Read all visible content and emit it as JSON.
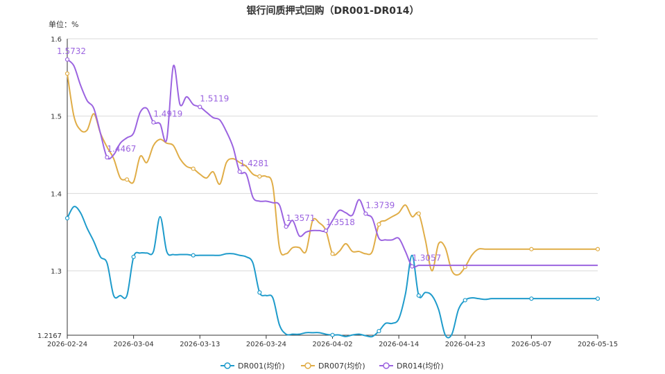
{
  "chart_data": {
    "type": "line",
    "title": "银行间质押式回购（DR001-DR014）",
    "unit_label": "单位：%",
    "ylim": [
      1.2167,
      1.6
    ],
    "y_ticks": [
      "1.2167",
      "1.3",
      "1.4",
      "1.5",
      "1.6"
    ],
    "x_ticks": [
      "2026-02-24",
      "2026-03-04",
      "2026-03-13",
      "2026-03-24",
      "2026-04-02",
      "2026-04-14",
      "2026-04-23",
      "2026-05-07",
      "2026-05-15"
    ],
    "grid": true,
    "legend_position": "bottom",
    "series": [
      {
        "name": "DR001(均价)",
        "color": "#1e9bcb",
        "x": [
          0,
          1,
          2,
          3,
          4,
          5,
          6,
          7,
          8,
          9,
          10,
          11,
          12,
          13,
          14,
          15,
          16,
          17,
          18,
          19,
          20,
          21,
          22,
          23,
          24,
          25,
          26,
          27,
          28,
          29,
          30,
          31,
          32,
          33,
          34,
          35,
          36,
          37,
          38,
          39,
          40,
          41,
          42,
          43,
          44,
          45,
          46,
          47,
          48,
          49,
          50,
          51,
          52,
          53,
          54,
          55,
          56,
          57,
          58,
          59,
          60,
          61,
          62,
          63,
          64,
          65,
          66,
          67,
          68,
          69,
          70,
          71,
          72,
          73,
          74,
          75,
          76,
          77,
          78,
          79,
          80
        ],
        "values": [
          1.368,
          1.383,
          1.375,
          1.355,
          1.338,
          1.318,
          1.31,
          1.268,
          1.268,
          1.268,
          1.318,
          1.323,
          1.323,
          1.325,
          1.37,
          1.325,
          1.321,
          1.321,
          1.321,
          1.32,
          1.32,
          1.32,
          1.32,
          1.32,
          1.322,
          1.322,
          1.32,
          1.318,
          1.31,
          1.272,
          1.268,
          1.265,
          1.23,
          1.218,
          1.218,
          1.218,
          1.22,
          1.22,
          1.22,
          1.218,
          1.217,
          1.217,
          1.215,
          1.217,
          1.218,
          1.216,
          1.215,
          1.222,
          1.232,
          1.232,
          1.238,
          1.27,
          1.32,
          1.268,
          1.272,
          1.268,
          1.25,
          1.217,
          1.218,
          1.25,
          1.262,
          1.265,
          1.264,
          1.263,
          1.264,
          1.264,
          1.264,
          1.264,
          1.264,
          1.264,
          1.264,
          1.264,
          1.264,
          1.264,
          1.264,
          1.264,
          1.264,
          1.264,
          1.264,
          1.264,
          1.264
        ],
        "markers": [
          0,
          10,
          19,
          29,
          40,
          47,
          53,
          60,
          70,
          80
        ],
        "labels": []
      },
      {
        "name": "DR007(均价)",
        "color": "#e0ad47",
        "x": [
          0,
          1,
          2,
          3,
          4,
          5,
          6,
          7,
          8,
          9,
          10,
          11,
          12,
          13,
          14,
          15,
          16,
          17,
          18,
          19,
          20,
          21,
          22,
          23,
          24,
          25,
          26,
          27,
          28,
          29,
          30,
          31,
          32,
          33,
          34,
          35,
          36,
          37,
          38,
          39,
          40,
          41,
          42,
          43,
          44,
          45,
          46,
          47,
          48,
          49,
          50,
          51,
          52,
          53,
          54,
          55,
          56,
          57,
          58,
          59,
          60,
          61,
          62,
          63,
          64,
          65,
          66,
          67,
          68,
          69,
          70,
          71,
          72,
          73,
          74,
          75,
          76,
          77,
          78,
          79,
          80
        ],
        "values": [
          1.555,
          1.5,
          1.482,
          1.482,
          1.503,
          1.478,
          1.46,
          1.445,
          1.42,
          1.418,
          1.415,
          1.448,
          1.44,
          1.462,
          1.47,
          1.465,
          1.462,
          1.445,
          1.435,
          1.432,
          1.425,
          1.42,
          1.428,
          1.412,
          1.44,
          1.445,
          1.44,
          1.435,
          1.425,
          1.422,
          1.422,
          1.41,
          1.33,
          1.322,
          1.33,
          1.33,
          1.325,
          1.365,
          1.362,
          1.352,
          1.322,
          1.325,
          1.335,
          1.325,
          1.325,
          1.322,
          1.325,
          1.36,
          1.365,
          1.37,
          1.375,
          1.385,
          1.37,
          1.374,
          1.34,
          1.3,
          1.335,
          1.33,
          1.3,
          1.295,
          1.305,
          1.32,
          1.328,
          1.328,
          1.328,
          1.328,
          1.328,
          1.328,
          1.328,
          1.328,
          1.328,
          1.328,
          1.328,
          1.328,
          1.328,
          1.328,
          1.328,
          1.328,
          1.328,
          1.328,
          1.328
        ],
        "markers": [
          0,
          9,
          19,
          29,
          40,
          47,
          53,
          60,
          70,
          80
        ],
        "labels": []
      },
      {
        "name": "DR014(均价)",
        "color": "#9b63e0",
        "x": [
          0,
          1,
          2,
          3,
          4,
          5,
          6,
          7,
          8,
          9,
          10,
          11,
          12,
          13,
          14,
          15,
          16,
          17,
          18,
          19,
          20,
          21,
          22,
          23,
          24,
          25,
          26,
          27,
          28,
          29,
          30,
          31,
          32,
          33,
          34,
          35,
          36,
          37,
          38,
          39,
          40,
          41,
          42,
          43,
          44,
          45,
          46,
          47,
          48,
          49,
          50,
          51,
          52,
          53,
          54,
          55,
          56,
          57,
          58,
          59,
          60,
          61,
          62,
          63,
          64,
          65,
          66,
          67,
          68,
          69,
          70,
          71,
          72,
          73,
          74,
          75,
          76,
          77,
          78,
          79,
          80
        ],
        "values": [
          1.5732,
          1.565,
          1.54,
          1.52,
          1.51,
          1.478,
          1.4467,
          1.45,
          1.465,
          1.472,
          1.478,
          1.505,
          1.51,
          1.4919,
          1.49,
          1.47,
          1.565,
          1.515,
          1.525,
          1.515,
          1.5119,
          1.505,
          1.498,
          1.495,
          1.48,
          1.46,
          1.4281,
          1.425,
          1.395,
          1.39,
          1.39,
          1.388,
          1.385,
          1.3571,
          1.365,
          1.345,
          1.35,
          1.352,
          1.352,
          1.3518,
          1.365,
          1.378,
          1.375,
          1.372,
          1.392,
          1.3739,
          1.368,
          1.342,
          1.34,
          1.34,
          1.342,
          1.325,
          1.3057,
          1.307,
          1.307,
          1.307,
          1.307,
          1.307,
          1.307,
          1.307,
          1.307,
          1.307,
          1.307,
          1.307,
          1.307,
          1.307,
          1.307,
          1.307,
          1.307,
          1.307,
          1.307,
          1.307,
          1.307,
          1.307,
          1.307,
          1.307,
          1.307,
          1.307,
          1.307,
          1.307,
          1.307
        ],
        "markers": [
          0,
          6,
          13,
          20,
          26,
          33,
          39,
          45,
          52
        ],
        "labels": [
          {
            "i": 0,
            "text": "1.5732"
          },
          {
            "i": 6,
            "text": "1.4467"
          },
          {
            "i": 13,
            "text": "1.4919"
          },
          {
            "i": 20,
            "text": "1.5119"
          },
          {
            "i": 26,
            "text": "1.4281"
          },
          {
            "i": 33,
            "text": "1.3571"
          },
          {
            "i": 39,
            "text": "1.3518"
          },
          {
            "i": 45,
            "text": "1.3739"
          },
          {
            "i": 52,
            "text": "1.3057"
          }
        ]
      }
    ]
  }
}
